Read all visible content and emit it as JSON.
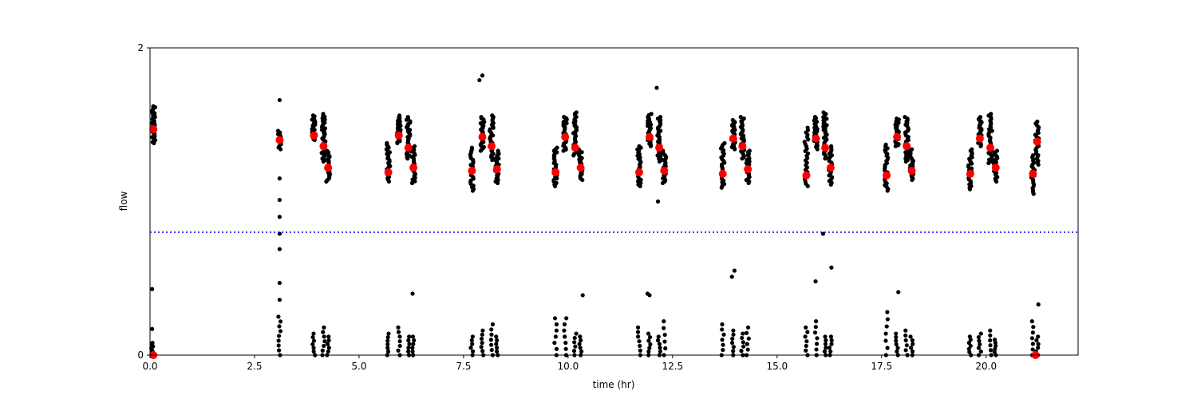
{
  "chart_data": {
    "type": "scatter",
    "title": "",
    "xlabel": "time (hr)",
    "ylabel": "flow",
    "xlim": [
      0,
      22.2
    ],
    "ylim": [
      0,
      2
    ],
    "xticks": [
      0.0,
      2.5,
      5.0,
      7.5,
      10.0,
      12.5,
      15.0,
      17.5,
      20.0
    ],
    "xtick_labels": [
      "0.0",
      "2.5",
      "5.0",
      "7.5",
      "10.0",
      "12.5",
      "15.0",
      "17.5",
      "20.0"
    ],
    "yticks": [
      0,
      2
    ],
    "ytick_labels": [
      "0",
      "2"
    ],
    "grid": false,
    "legend": "none",
    "colors": {
      "raw": "#000000",
      "mean": "#ff0000",
      "threshold": "#0000ff"
    },
    "threshold": {
      "y": 0.8,
      "style": "dotted"
    },
    "raw_clusters": [
      {
        "x": 0.08,
        "y_min": 1.38,
        "y_max": 1.62,
        "n": 38
      },
      {
        "x": 3.1,
        "y_min": 1.34,
        "y_max": 1.46,
        "n": 12
      },
      {
        "x": 3.92,
        "y_min": 1.4,
        "y_max": 1.56,
        "n": 30
      },
      {
        "x": 4.15,
        "y_min": 1.26,
        "y_max": 1.57,
        "n": 34
      },
      {
        "x": 4.26,
        "y_min": 1.13,
        "y_max": 1.33,
        "n": 22
      },
      {
        "x": 5.7,
        "y_min": 1.13,
        "y_max": 1.38,
        "n": 26
      },
      {
        "x": 5.95,
        "y_min": 1.38,
        "y_max": 1.56,
        "n": 28
      },
      {
        "x": 6.18,
        "y_min": 1.28,
        "y_max": 1.55,
        "n": 30
      },
      {
        "x": 6.3,
        "y_min": 1.12,
        "y_max": 1.36,
        "n": 22
      },
      {
        "x": 7.7,
        "y_min": 1.07,
        "y_max": 1.35,
        "n": 26
      },
      {
        "x": 7.95,
        "y_min": 1.33,
        "y_max": 1.55,
        "n": 28
      },
      {
        "x": 8.17,
        "y_min": 1.27,
        "y_max": 1.56,
        "n": 30
      },
      {
        "x": 8.3,
        "y_min": 1.12,
        "y_max": 1.33,
        "n": 22
      },
      {
        "x": 9.7,
        "y_min": 1.1,
        "y_max": 1.35,
        "n": 26
      },
      {
        "x": 9.93,
        "y_min": 1.33,
        "y_max": 1.55,
        "n": 28
      },
      {
        "x": 10.17,
        "y_min": 1.3,
        "y_max": 1.58,
        "n": 30
      },
      {
        "x": 10.3,
        "y_min": 1.14,
        "y_max": 1.34,
        "n": 22
      },
      {
        "x": 11.7,
        "y_min": 1.1,
        "y_max": 1.36,
        "n": 26
      },
      {
        "x": 11.95,
        "y_min": 1.36,
        "y_max": 1.57,
        "n": 28
      },
      {
        "x": 12.18,
        "y_min": 1.26,
        "y_max": 1.55,
        "n": 30
      },
      {
        "x": 12.3,
        "y_min": 1.12,
        "y_max": 1.33,
        "n": 22
      },
      {
        "x": 13.7,
        "y_min": 1.09,
        "y_max": 1.38,
        "n": 26
      },
      {
        "x": 13.95,
        "y_min": 1.34,
        "y_max": 1.53,
        "n": 28
      },
      {
        "x": 14.17,
        "y_min": 1.28,
        "y_max": 1.55,
        "n": 30
      },
      {
        "x": 14.3,
        "y_min": 1.12,
        "y_max": 1.33,
        "n": 22
      },
      {
        "x": 15.7,
        "y_min": 1.1,
        "y_max": 1.48,
        "n": 26
      },
      {
        "x": 15.93,
        "y_min": 1.34,
        "y_max": 1.55,
        "n": 28
      },
      {
        "x": 16.15,
        "y_min": 1.28,
        "y_max": 1.58,
        "n": 30
      },
      {
        "x": 16.28,
        "y_min": 1.11,
        "y_max": 1.36,
        "n": 22
      },
      {
        "x": 17.62,
        "y_min": 1.07,
        "y_max": 1.37,
        "n": 26
      },
      {
        "x": 17.87,
        "y_min": 1.36,
        "y_max": 1.54,
        "n": 28
      },
      {
        "x": 18.1,
        "y_min": 1.26,
        "y_max": 1.55,
        "n": 30
      },
      {
        "x": 18.22,
        "y_min": 1.14,
        "y_max": 1.34,
        "n": 22
      },
      {
        "x": 19.62,
        "y_min": 1.08,
        "y_max": 1.34,
        "n": 26
      },
      {
        "x": 19.85,
        "y_min": 1.36,
        "y_max": 1.55,
        "n": 28
      },
      {
        "x": 20.1,
        "y_min": 1.25,
        "y_max": 1.57,
        "n": 30
      },
      {
        "x": 20.23,
        "y_min": 1.13,
        "y_max": 1.33,
        "n": 22
      },
      {
        "x": 21.12,
        "y_min": 1.05,
        "y_max": 1.3,
        "n": 22
      },
      {
        "x": 21.22,
        "y_min": 1.24,
        "y_max": 1.52,
        "n": 24
      }
    ],
    "low_clusters": [
      {
        "x": 0.05,
        "y_min": 0.0,
        "y_max": 0.08,
        "n": 8
      },
      {
        "x": 3.1,
        "y_min": 0.0,
        "y_max": 0.25,
        "n": 9
      },
      {
        "x": 3.92,
        "y_min": 0.0,
        "y_max": 0.14,
        "n": 7
      },
      {
        "x": 4.15,
        "y_min": 0.0,
        "y_max": 0.18,
        "n": 7
      },
      {
        "x": 4.26,
        "y_min": 0.0,
        "y_max": 0.12,
        "n": 6
      },
      {
        "x": 5.7,
        "y_min": 0.0,
        "y_max": 0.14,
        "n": 7
      },
      {
        "x": 5.95,
        "y_min": 0.0,
        "y_max": 0.18,
        "n": 7
      },
      {
        "x": 6.18,
        "y_min": 0.0,
        "y_max": 0.12,
        "n": 6
      },
      {
        "x": 6.3,
        "y_min": 0.0,
        "y_max": 0.12,
        "n": 6
      },
      {
        "x": 7.7,
        "y_min": 0.0,
        "y_max": 0.12,
        "n": 6
      },
      {
        "x": 7.95,
        "y_min": 0.0,
        "y_max": 0.16,
        "n": 7
      },
      {
        "x": 8.17,
        "y_min": 0.0,
        "y_max": 0.2,
        "n": 7
      },
      {
        "x": 8.3,
        "y_min": 0.0,
        "y_max": 0.12,
        "n": 6
      },
      {
        "x": 9.7,
        "y_min": 0.0,
        "y_max": 0.24,
        "n": 7
      },
      {
        "x": 9.93,
        "y_min": 0.0,
        "y_max": 0.24,
        "n": 7
      },
      {
        "x": 10.17,
        "y_min": 0.0,
        "y_max": 0.14,
        "n": 6
      },
      {
        "x": 10.3,
        "y_min": 0.0,
        "y_max": 0.12,
        "n": 6
      },
      {
        "x": 11.7,
        "y_min": 0.0,
        "y_max": 0.18,
        "n": 7
      },
      {
        "x": 11.95,
        "y_min": 0.0,
        "y_max": 0.14,
        "n": 7
      },
      {
        "x": 12.18,
        "y_min": 0.0,
        "y_max": 0.12,
        "n": 6
      },
      {
        "x": 12.3,
        "y_min": 0.0,
        "y_max": 0.22,
        "n": 6
      },
      {
        "x": 13.7,
        "y_min": 0.0,
        "y_max": 0.2,
        "n": 7
      },
      {
        "x": 13.95,
        "y_min": 0.0,
        "y_max": 0.16,
        "n": 7
      },
      {
        "x": 14.17,
        "y_min": 0.0,
        "y_max": 0.14,
        "n": 6
      },
      {
        "x": 14.3,
        "y_min": 0.0,
        "y_max": 0.18,
        "n": 6
      },
      {
        "x": 15.7,
        "y_min": 0.0,
        "y_max": 0.18,
        "n": 7
      },
      {
        "x": 15.93,
        "y_min": 0.0,
        "y_max": 0.22,
        "n": 7
      },
      {
        "x": 16.15,
        "y_min": 0.0,
        "y_max": 0.12,
        "n": 6
      },
      {
        "x": 16.28,
        "y_min": 0.0,
        "y_max": 0.12,
        "n": 6
      },
      {
        "x": 17.62,
        "y_min": 0.0,
        "y_max": 0.28,
        "n": 7
      },
      {
        "x": 17.87,
        "y_min": 0.0,
        "y_max": 0.14,
        "n": 7
      },
      {
        "x": 18.1,
        "y_min": 0.0,
        "y_max": 0.16,
        "n": 6
      },
      {
        "x": 18.22,
        "y_min": 0.0,
        "y_max": 0.12,
        "n": 6
      },
      {
        "x": 19.62,
        "y_min": 0.0,
        "y_max": 0.12,
        "n": 7
      },
      {
        "x": 19.85,
        "y_min": 0.0,
        "y_max": 0.14,
        "n": 7
      },
      {
        "x": 20.1,
        "y_min": 0.0,
        "y_max": 0.16,
        "n": 6
      },
      {
        "x": 20.23,
        "y_min": 0.0,
        "y_max": 0.1,
        "n": 6
      },
      {
        "x": 21.12,
        "y_min": 0.0,
        "y_max": 0.22,
        "n": 7
      },
      {
        "x": 21.22,
        "y_min": 0.0,
        "y_max": 0.12,
        "n": 6
      }
    ],
    "outliers": [
      {
        "x": 0.05,
        "y": 0.43
      },
      {
        "x": 0.05,
        "y": 0.17
      },
      {
        "x": 3.1,
        "y": 1.66
      },
      {
        "x": 3.1,
        "y": 1.15
      },
      {
        "x": 3.1,
        "y": 1.01
      },
      {
        "x": 3.1,
        "y": 0.9
      },
      {
        "x": 3.1,
        "y": 0.79
      },
      {
        "x": 3.1,
        "y": 0.69
      },
      {
        "x": 3.1,
        "y": 0.47
      },
      {
        "x": 3.1,
        "y": 0.36
      },
      {
        "x": 6.28,
        "y": 0.4
      },
      {
        "x": 7.88,
        "y": 1.79
      },
      {
        "x": 7.95,
        "y": 1.82
      },
      {
        "x": 10.35,
        "y": 0.39
      },
      {
        "x": 11.9,
        "y": 0.4
      },
      {
        "x": 11.95,
        "y": 0.39
      },
      {
        "x": 12.12,
        "y": 1.74
      },
      {
        "x": 12.15,
        "y": 1.0
      },
      {
        "x": 13.92,
        "y": 0.51
      },
      {
        "x": 13.98,
        "y": 0.55
      },
      {
        "x": 16.1,
        "y": 0.79
      },
      {
        "x": 16.3,
        "y": 0.57
      },
      {
        "x": 15.92,
        "y": 0.48
      },
      {
        "x": 17.9,
        "y": 0.41
      },
      {
        "x": 21.25,
        "y": 0.33
      }
    ],
    "means": {
      "x": [
        0.08,
        3.1,
        3.92,
        4.15,
        4.26,
        5.7,
        5.95,
        6.18,
        6.3,
        7.7,
        7.95,
        8.17,
        8.3,
        9.7,
        9.93,
        10.17,
        10.3,
        11.7,
        11.95,
        12.18,
        12.3,
        13.7,
        13.95,
        14.17,
        14.3,
        15.7,
        15.93,
        16.15,
        16.28,
        17.62,
        17.87,
        18.1,
        18.22,
        19.62,
        19.85,
        20.1,
        20.23,
        21.12,
        21.22
      ],
      "y": [
        1.47,
        1.4,
        1.43,
        1.36,
        1.22,
        1.19,
        1.43,
        1.35,
        1.22,
        1.2,
        1.42,
        1.36,
        1.21,
        1.19,
        1.42,
        1.35,
        1.22,
        1.19,
        1.42,
        1.35,
        1.2,
        1.18,
        1.41,
        1.36,
        1.21,
        1.17,
        1.41,
        1.35,
        1.22,
        1.17,
        1.42,
        1.36,
        1.2,
        1.18,
        1.41,
        1.35,
        1.22,
        1.18,
        1.39
      ]
    },
    "zero_means_x": [
      0.08,
      21.18
    ]
  }
}
